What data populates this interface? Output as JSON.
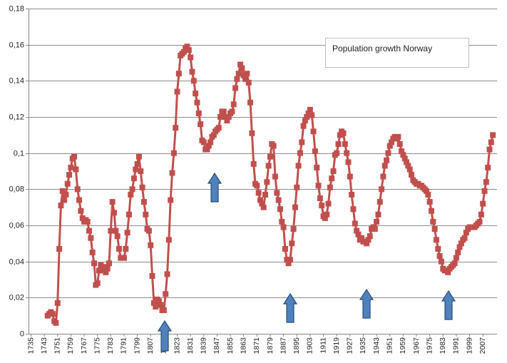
{
  "chart_data": {
    "type": "line",
    "title": "Population growth Norway",
    "color": "#c0504d",
    "x": [
      1745,
      1746,
      1747,
      1748,
      1749,
      1750,
      1751,
      1752,
      1753,
      1754,
      1755,
      1756,
      1757,
      1758,
      1759,
      1760,
      1761,
      1762,
      1763,
      1764,
      1765,
      1766,
      1767,
      1768,
      1769,
      1770,
      1771,
      1772,
      1773,
      1774,
      1775,
      1776,
      1777,
      1778,
      1779,
      1780,
      1781,
      1782,
      1783,
      1784,
      1785,
      1786,
      1787,
      1788,
      1789,
      1790,
      1791,
      1792,
      1793,
      1794,
      1795,
      1796,
      1797,
      1798,
      1799,
      1800,
      1801,
      1802,
      1803,
      1804,
      1805,
      1806,
      1807,
      1808,
      1809,
      1810,
      1811,
      1812,
      1813,
      1814,
      1815,
      1816,
      1817,
      1818,
      1819,
      1820,
      1821,
      1822,
      1823,
      1824,
      1825,
      1826,
      1827,
      1828,
      1829,
      1830,
      1831,
      1832,
      1833,
      1834,
      1835,
      1836,
      1837,
      1838,
      1839,
      1840,
      1841,
      1842,
      1843,
      1844,
      1845,
      1846,
      1847,
      1848,
      1849,
      1850,
      1851,
      1852,
      1853,
      1854,
      1855,
      1856,
      1857,
      1858,
      1859,
      1860,
      1861,
      1862,
      1863,
      1864,
      1865,
      1866,
      1867,
      1868,
      1869,
      1870,
      1871,
      1872,
      1873,
      1874,
      1875,
      1876,
      1877,
      1878,
      1879,
      1880,
      1881,
      1882,
      1883,
      1884,
      1885,
      1886,
      1887,
      1888,
      1889,
      1890,
      1891,
      1892,
      1893,
      1894,
      1895,
      1896,
      1897,
      1898,
      1899,
      1900,
      1901,
      1902,
      1903,
      1904,
      1905,
      1906,
      1907,
      1908,
      1909,
      1910,
      1911,
      1912,
      1913,
      1914,
      1915,
      1916,
      1917,
      1918,
      1919,
      1920,
      1921,
      1922,
      1923,
      1924,
      1925,
      1926,
      1927,
      1928,
      1929,
      1930,
      1931,
      1932,
      1933,
      1934,
      1935,
      1936,
      1937,
      1938,
      1939,
      1940,
      1941,
      1942,
      1943,
      1944,
      1945,
      1946,
      1947,
      1948,
      1949,
      1950,
      1951,
      1952,
      1953,
      1954,
      1955,
      1956,
      1957,
      1958,
      1959,
      1960,
      1961,
      1962,
      1963,
      1964,
      1965,
      1966,
      1967,
      1968,
      1969,
      1970,
      1971,
      1972,
      1973,
      1974,
      1975,
      1976,
      1977,
      1978,
      1979,
      1980,
      1981,
      1982,
      1983,
      1984,
      1985,
      1986,
      1987,
      1988,
      1989,
      1990,
      1991,
      1992,
      1993,
      1994,
      1995,
      1996,
      1997,
      1998,
      1999,
      2000,
      2001,
      2002,
      2003,
      2004,
      2005,
      2006,
      2007,
      2008,
      2009,
      2010,
      2011,
      2012,
      2013
    ],
    "values": [
      0.01,
      0.011,
      0.012,
      0.011,
      0.007,
      0.006,
      0.017,
      0.047,
      0.071,
      0.079,
      0.074,
      0.077,
      0.083,
      0.088,
      0.092,
      0.097,
      0.098,
      0.091,
      0.08,
      0.074,
      0.068,
      0.064,
      0.062,
      0.063,
      0.062,
      0.057,
      0.053,
      0.045,
      0.039,
      0.027,
      0.028,
      0.035,
      0.038,
      0.035,
      0.037,
      0.034,
      0.036,
      0.039,
      0.057,
      0.073,
      0.067,
      0.057,
      0.054,
      0.047,
      0.042,
      0.042,
      0.042,
      0.047,
      0.056,
      0.066,
      0.077,
      0.08,
      0.086,
      0.091,
      0.094,
      0.098,
      0.09,
      0.081,
      0.073,
      0.066,
      0.058,
      0.057,
      0.049,
      0.032,
      0.017,
      0.015,
      0.019,
      0.018,
      0.016,
      0.013,
      0.013,
      0.022,
      0.033,
      0.052,
      0.074,
      0.089,
      0.1,
      0.114,
      0.134,
      0.144,
      0.154,
      0.155,
      0.156,
      0.158,
      0.159,
      0.157,
      0.153,
      0.145,
      0.14,
      0.133,
      0.128,
      0.122,
      0.116,
      0.107,
      0.106,
      0.102,
      0.102,
      0.104,
      0.106,
      0.109,
      0.11,
      0.112,
      0.113,
      0.114,
      0.12,
      0.123,
      0.123,
      0.12,
      0.118,
      0.12,
      0.122,
      0.123,
      0.127,
      0.136,
      0.141,
      0.144,
      0.149,
      0.147,
      0.143,
      0.141,
      0.144,
      0.139,
      0.128,
      0.111,
      0.094,
      0.083,
      0.082,
      0.078,
      0.074,
      0.072,
      0.07,
      0.077,
      0.084,
      0.093,
      0.098,
      0.105,
      0.104,
      0.087,
      0.078,
      0.074,
      0.069,
      0.062,
      0.059,
      0.047,
      0.041,
      0.039,
      0.041,
      0.05,
      0.058,
      0.07,
      0.081,
      0.093,
      0.1,
      0.106,
      0.115,
      0.118,
      0.12,
      0.122,
      0.124,
      0.121,
      0.112,
      0.101,
      0.092,
      0.082,
      0.075,
      0.071,
      0.065,
      0.064,
      0.066,
      0.072,
      0.081,
      0.086,
      0.09,
      0.099,
      0.1,
      0.105,
      0.11,
      0.112,
      0.111,
      0.105,
      0.1,
      0.095,
      0.087,
      0.077,
      0.069,
      0.061,
      0.057,
      0.055,
      0.052,
      0.053,
      0.051,
      0.051,
      0.05,
      0.052,
      0.054,
      0.058,
      0.059,
      0.058,
      0.062,
      0.066,
      0.073,
      0.08,
      0.087,
      0.093,
      0.096,
      0.1,
      0.104,
      0.106,
      0.108,
      0.109,
      0.108,
      0.109,
      0.105,
      0.101,
      0.099,
      0.097,
      0.095,
      0.093,
      0.091,
      0.088,
      0.085,
      0.084,
      0.083,
      0.083,
      0.082,
      0.082,
      0.081,
      0.08,
      0.079,
      0.077,
      0.073,
      0.068,
      0.062,
      0.058,
      0.052,
      0.047,
      0.043,
      0.04,
      0.036,
      0.035,
      0.035,
      0.034,
      0.036,
      0.037,
      0.038,
      0.039,
      0.042,
      0.045,
      0.048,
      0.05,
      0.052,
      0.053,
      0.056,
      0.058,
      0.059,
      0.059,
      0.059,
      0.059,
      0.06,
      0.061,
      0.062,
      0.066,
      0.072,
      0.079,
      0.084,
      0.092,
      0.102,
      0.106,
      0.11
    ],
    "xlim": [
      1733.5,
      2015.5
    ],
    "xticks": [
      1735,
      1743,
      1751,
      1759,
      1767,
      1775,
      1783,
      1791,
      1799,
      1807,
      1815,
      1823,
      1831,
      1839,
      1847,
      1855,
      1863,
      1871,
      1879,
      1887,
      1895,
      1903,
      1911,
      1919,
      1927,
      1935,
      1943,
      1951,
      1959,
      1967,
      1975,
      1983,
      1991,
      1999,
      2007
    ],
    "ylim": [
      0,
      0.18
    ],
    "yticks": [
      0,
      {
        "value": 0.02,
        "label": "0,02"
      },
      {
        "value": 0.04,
        "label": "0,04"
      },
      {
        "value": 0.06,
        "label": "0,06"
      },
      {
        "value": 0.08,
        "label": "0,08"
      },
      {
        "value": 0.1,
        "label": "0,1"
      },
      {
        "value": 0.12,
        "label": "0,12"
      },
      {
        "value": 0.14,
        "label": "0,14"
      },
      {
        "value": 0.16,
        "label": "0,16"
      },
      {
        "value": 0.18,
        "label": "0,18"
      }
    ],
    "grid": true
  }
}
